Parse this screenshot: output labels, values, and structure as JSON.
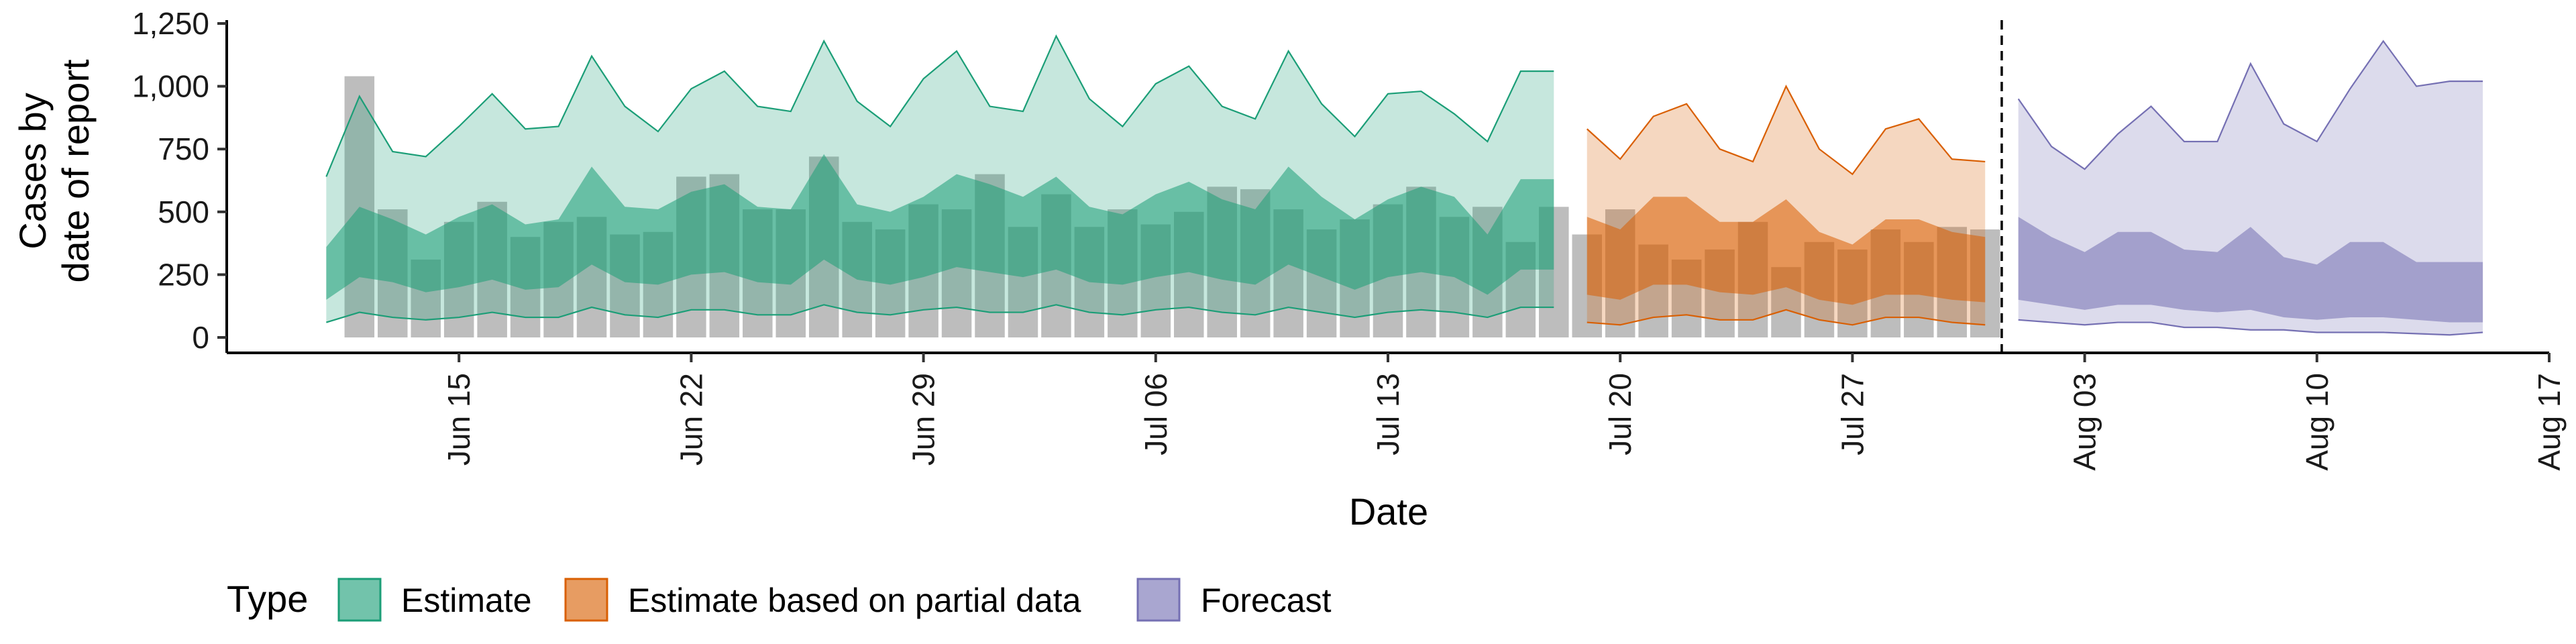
{
  "chart_data": {
    "type": "area",
    "xlabel": "Date",
    "ylabel": [
      "Cases by",
      "date of report"
    ],
    "ylim": [
      0,
      1250
    ],
    "y_ticks": [
      0,
      250,
      500,
      750,
      1000,
      1250
    ],
    "y_tick_labels": [
      "0",
      "250",
      "500",
      "750",
      "1,000",
      "1,250"
    ],
    "x_ticks": [
      "2020-06-15",
      "2020-06-22",
      "2020-06-29",
      "2020-07-06",
      "2020-07-13",
      "2020-07-20",
      "2020-07-27",
      "2020-08-03",
      "2020-08-10",
      "2020-08-17"
    ],
    "x_tick_labels": [
      "Jun 15",
      "Jun 22",
      "Jun 29",
      "Jul 06",
      "Jul 13",
      "Jul 20",
      "Jul 27",
      "Aug 03",
      "Aug 10",
      "Aug 17"
    ],
    "xlim": [
      "2020-06-08",
      "2020-08-17"
    ],
    "forecast_divider_date": "2020-07-31",
    "grid": false,
    "legend_position": "bottom-left",
    "legend_title": "Type",
    "colors": {
      "estimate": "#1b9e77",
      "partial": "#d95f02",
      "forecast": "#7570b3",
      "bars": "#bdbdbd"
    },
    "reported_cases": {
      "dates": [
        "2020-06-12",
        "2020-06-13",
        "2020-06-14",
        "2020-06-15",
        "2020-06-16",
        "2020-06-17",
        "2020-06-18",
        "2020-06-19",
        "2020-06-20",
        "2020-06-21",
        "2020-06-22",
        "2020-06-23",
        "2020-06-24",
        "2020-06-25",
        "2020-06-26",
        "2020-06-27",
        "2020-06-28",
        "2020-06-29",
        "2020-06-30",
        "2020-07-01",
        "2020-07-02",
        "2020-07-03",
        "2020-07-04",
        "2020-07-05",
        "2020-07-06",
        "2020-07-07",
        "2020-07-08",
        "2020-07-09",
        "2020-07-10",
        "2020-07-11",
        "2020-07-12",
        "2020-07-13",
        "2020-07-14",
        "2020-07-15",
        "2020-07-16",
        "2020-07-17",
        "2020-07-18",
        "2020-07-19",
        "2020-07-20",
        "2020-07-21",
        "2020-07-22",
        "2020-07-23",
        "2020-07-24",
        "2020-07-25",
        "2020-07-26",
        "2020-07-27",
        "2020-07-28",
        "2020-07-29",
        "2020-07-30",
        "2020-07-31"
      ],
      "values": [
        1040,
        510,
        310,
        460,
        540,
        400,
        460,
        480,
        410,
        420,
        640,
        650,
        510,
        510,
        720,
        460,
        430,
        530,
        510,
        650,
        440,
        570,
        440,
        510,
        450,
        500,
        600,
        590,
        510,
        430,
        470,
        530,
        600,
        480,
        520,
        380,
        520,
        410,
        510,
        370,
        310,
        350,
        460,
        280,
        380,
        350,
        430,
        380,
        440,
        430
      ]
    },
    "series": [
      {
        "name": "Estimate",
        "dates": [
          "2020-06-11",
          "2020-06-12",
          "2020-06-13",
          "2020-06-14",
          "2020-06-15",
          "2020-06-16",
          "2020-06-17",
          "2020-06-18",
          "2020-06-19",
          "2020-06-20",
          "2020-06-21",
          "2020-06-22",
          "2020-06-23",
          "2020-06-24",
          "2020-06-25",
          "2020-06-26",
          "2020-06-27",
          "2020-06-28",
          "2020-06-29",
          "2020-06-30",
          "2020-07-01",
          "2020-07-02",
          "2020-07-03",
          "2020-07-04",
          "2020-07-05",
          "2020-07-06",
          "2020-07-07",
          "2020-07-08",
          "2020-07-09",
          "2020-07-10",
          "2020-07-11",
          "2020-07-12",
          "2020-07-13",
          "2020-07-14",
          "2020-07-15",
          "2020-07-16",
          "2020-07-17",
          "2020-07-18"
        ],
        "outer_upper": [
          640,
          960,
          740,
          720,
          840,
          970,
          830,
          840,
          1120,
          920,
          820,
          990,
          1060,
          920,
          900,
          1180,
          940,
          840,
          1030,
          1140,
          920,
          900,
          1200,
          950,
          840,
          1010,
          1080,
          920,
          870,
          1140,
          930,
          800,
          970,
          980,
          890,
          780,
          1060,
          1060
        ],
        "inner_upper": [
          360,
          520,
          470,
          410,
          480,
          530,
          450,
          470,
          680,
          520,
          510,
          580,
          610,
          520,
          510,
          730,
          530,
          500,
          560,
          650,
          610,
          560,
          640,
          520,
          490,
          570,
          620,
          550,
          510,
          680,
          560,
          470,
          550,
          600,
          560,
          410,
          630,
          630
        ],
        "inner_lower": [
          150,
          240,
          220,
          180,
          200,
          230,
          190,
          200,
          290,
          220,
          210,
          250,
          260,
          220,
          210,
          310,
          230,
          210,
          240,
          280,
          260,
          240,
          270,
          220,
          210,
          240,
          260,
          230,
          210,
          290,
          240,
          190,
          240,
          260,
          240,
          170,
          270,
          270
        ],
        "outer_lower": [
          60,
          100,
          80,
          70,
          80,
          100,
          80,
          80,
          120,
          90,
          80,
          110,
          110,
          90,
          90,
          130,
          100,
          90,
          110,
          120,
          100,
          100,
          130,
          100,
          90,
          110,
          120,
          100,
          90,
          120,
          100,
          80,
          100,
          110,
          100,
          80,
          120,
          120
        ]
      },
      {
        "name": "Estimate based on partial data",
        "dates": [
          "2020-07-19",
          "2020-07-20",
          "2020-07-21",
          "2020-07-22",
          "2020-07-23",
          "2020-07-24",
          "2020-07-25",
          "2020-07-26",
          "2020-07-27",
          "2020-07-28",
          "2020-07-29",
          "2020-07-30",
          "2020-07-31"
        ],
        "outer_upper": [
          830,
          710,
          880,
          930,
          750,
          700,
          1000,
          750,
          650,
          830,
          870,
          710,
          700
        ],
        "inner_upper": [
          480,
          430,
          560,
          560,
          460,
          460,
          550,
          420,
          370,
          470,
          470,
          420,
          400
        ],
        "inner_lower": [
          170,
          150,
          210,
          210,
          180,
          170,
          200,
          150,
          130,
          170,
          170,
          150,
          140
        ],
        "outer_lower": [
          60,
          50,
          80,
          90,
          70,
          70,
          110,
          70,
          50,
          80,
          80,
          60,
          50
        ]
      },
      {
        "name": "Forecast",
        "dates": [
          "2020-08-01",
          "2020-08-02",
          "2020-08-03",
          "2020-08-04",
          "2020-08-05",
          "2020-08-06",
          "2020-08-07",
          "2020-08-08",
          "2020-08-09",
          "2020-08-10",
          "2020-08-11",
          "2020-08-12",
          "2020-08-13",
          "2020-08-14",
          "2020-08-15"
        ],
        "outer_upper": [
          950,
          760,
          670,
          810,
          920,
          780,
          780,
          1090,
          850,
          780,
          990,
          1180,
          1000,
          1020,
          1020
        ],
        "inner_upper": [
          480,
          400,
          340,
          420,
          420,
          350,
          340,
          440,
          320,
          290,
          380,
          380,
          300,
          300,
          300
        ],
        "inner_lower": [
          150,
          130,
          110,
          130,
          130,
          110,
          100,
          110,
          80,
          70,
          80,
          80,
          70,
          60,
          60
        ],
        "outer_lower": [
          70,
          60,
          50,
          60,
          60,
          40,
          40,
          30,
          30,
          20,
          20,
          20,
          15,
          10,
          20
        ]
      }
    ]
  }
}
